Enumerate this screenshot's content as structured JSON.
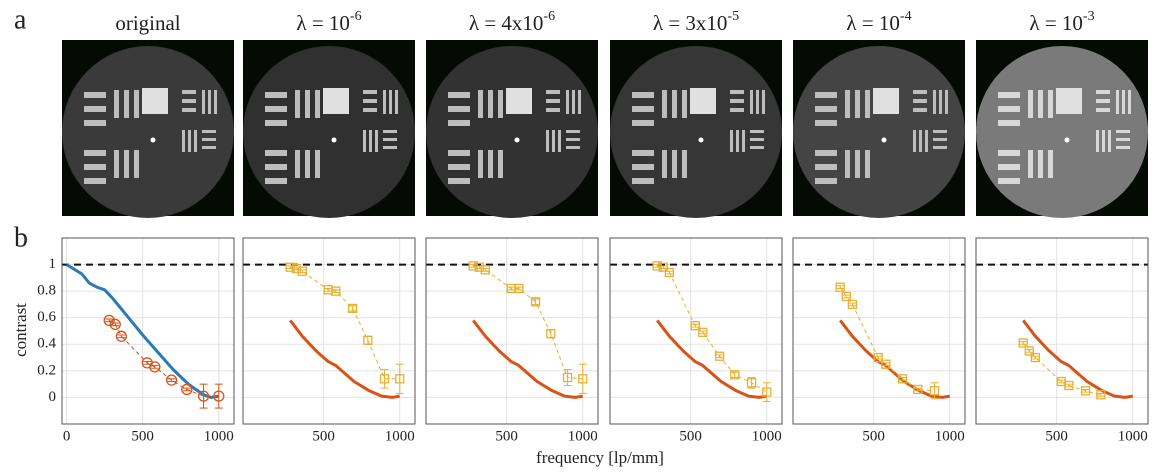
{
  "panel_labels": [
    "a",
    "b"
  ],
  "xlabel": "frequency [lp/mm]",
  "ylabel": "contrast",
  "images": [
    {
      "title": "original"
    },
    {
      "title": "λ = 10",
      "title_superscript": "-6"
    },
    {
      "title": "λ = 4x10",
      "title_superscript": "-6"
    },
    {
      "title": "λ = 3x10",
      "title_superscript": "-5"
    },
    {
      "title": "λ = 10",
      "title_superscript": "-4"
    },
    {
      "title": "λ = 10",
      "title_superscript": "-3"
    }
  ],
  "chart_data": [
    {
      "type": "line",
      "xlim": [
        -30,
        1100
      ],
      "ylim": [
        -0.2,
        1.2
      ],
      "xticks": [
        0,
        500,
        1000
      ],
      "yticks": [
        0,
        0.2,
        0.4,
        0.6,
        0.8,
        1
      ],
      "yticklabels": true,
      "grid": true,
      "hline": 1,
      "series": [
        {
          "style": "line",
          "color": "#2a7ab8",
          "x": [
            0,
            100,
            150,
            200,
            250,
            300,
            400,
            500,
            600,
            700,
            800,
            900,
            950,
            1000
          ],
          "values": [
            1,
            0.93,
            0.86,
            0.83,
            0.81,
            0.75,
            0.61,
            0.47,
            0.34,
            0.21,
            0.1,
            0.02,
            0,
            0.01
          ]
        },
        {
          "style": "markers",
          "marker": "circle",
          "color": "#d95319",
          "x": [
            280,
            320,
            360,
            530,
            580,
            690,
            790,
            900,
            1000
          ],
          "values": [
            0.58,
            0.55,
            0.46,
            0.26,
            0.23,
            0.13,
            0.06,
            0.01,
            0.01
          ],
          "errors": [
            0.01,
            0.01,
            0.01,
            0.01,
            0.01,
            0.01,
            0.01,
            0.09,
            0.09
          ]
        }
      ]
    },
    {
      "type": "line",
      "xlim": [
        -30,
        1100
      ],
      "ylim": [
        -0.2,
        1.2
      ],
      "xticks": [
        500,
        1000
      ],
      "yticks": [
        0,
        0.2,
        0.4,
        0.6,
        0.8,
        1
      ],
      "yticklabels": false,
      "grid": true,
      "hline": 1,
      "series": [
        {
          "style": "line",
          "color": "#d95319",
          "x": [
            280,
            320,
            360,
            450,
            530,
            580,
            620,
            700,
            800,
            880,
            950,
            1000
          ],
          "values": [
            0.58,
            0.52,
            0.46,
            0.35,
            0.27,
            0.24,
            0.2,
            0.12,
            0.05,
            0.01,
            0,
            0.01
          ]
        },
        {
          "style": "markers",
          "marker": "square",
          "color": "#e8b030",
          "x": [
            280,
            320,
            360,
            530,
            580,
            690,
            790,
            900,
            1000
          ],
          "values": [
            0.98,
            0.97,
            0.95,
            0.81,
            0.8,
            0.67,
            0.43,
            0.14,
            0.14
          ],
          "errors": [
            0.01,
            0.01,
            0.01,
            0.01,
            0.01,
            0.02,
            0.03,
            0.07,
            0.11
          ]
        }
      ]
    },
    {
      "type": "line",
      "xlim": [
        -30,
        1100
      ],
      "ylim": [
        -0.2,
        1.2
      ],
      "xticks": [
        500,
        1000
      ],
      "yticks": [
        0,
        0.2,
        0.4,
        0.6,
        0.8,
        1
      ],
      "yticklabels": false,
      "grid": true,
      "hline": 1,
      "series": [
        {
          "style": "line",
          "color": "#d95319",
          "x": [
            280,
            320,
            360,
            450,
            530,
            580,
            620,
            700,
            800,
            880,
            950,
            1000
          ],
          "values": [
            0.58,
            0.52,
            0.46,
            0.35,
            0.27,
            0.24,
            0.2,
            0.12,
            0.05,
            0.01,
            0,
            0.01
          ]
        },
        {
          "style": "markers",
          "marker": "square",
          "color": "#e8b030",
          "x": [
            280,
            320,
            360,
            530,
            580,
            690,
            790,
            900,
            1000
          ],
          "values": [
            0.99,
            0.98,
            0.96,
            0.82,
            0.82,
            0.72,
            0.48,
            0.15,
            0.14
          ],
          "errors": [
            0.01,
            0.01,
            0.01,
            0.01,
            0.01,
            0.02,
            0.03,
            0.06,
            0.11
          ]
        }
      ]
    },
    {
      "type": "line",
      "xlim": [
        -30,
        1100
      ],
      "ylim": [
        -0.2,
        1.2
      ],
      "xticks": [
        500,
        1000
      ],
      "yticks": [
        0,
        0.2,
        0.4,
        0.6,
        0.8,
        1
      ],
      "yticklabels": false,
      "grid": true,
      "hline": 1,
      "series": [
        {
          "style": "line",
          "color": "#d95319",
          "x": [
            280,
            320,
            360,
            450,
            530,
            580,
            620,
            700,
            800,
            880,
            950,
            1000
          ],
          "values": [
            0.58,
            0.52,
            0.46,
            0.35,
            0.27,
            0.24,
            0.2,
            0.12,
            0.05,
            0.01,
            0,
            0.01
          ]
        },
        {
          "style": "markers",
          "marker": "square",
          "color": "#e8b030",
          "x": [
            280,
            320,
            360,
            530,
            580,
            690,
            790,
            900,
            1000
          ],
          "values": [
            0.99,
            0.98,
            0.94,
            0.54,
            0.49,
            0.31,
            0.17,
            0.11,
            0.04
          ],
          "errors": [
            0.01,
            0.01,
            0.01,
            0.01,
            0.01,
            0.01,
            0.02,
            0.04,
            0.07
          ]
        }
      ]
    },
    {
      "type": "line",
      "xlim": [
        -30,
        1100
      ],
      "ylim": [
        -0.2,
        1.2
      ],
      "xticks": [
        500,
        1000
      ],
      "yticks": [
        0,
        0.2,
        0.4,
        0.6,
        0.8,
        1
      ],
      "yticklabels": false,
      "grid": true,
      "hline": 1,
      "series": [
        {
          "style": "line",
          "color": "#d95319",
          "x": [
            280,
            320,
            360,
            450,
            530,
            580,
            620,
            700,
            800,
            880,
            950,
            1000
          ],
          "values": [
            0.58,
            0.52,
            0.46,
            0.35,
            0.27,
            0.24,
            0.2,
            0.12,
            0.05,
            0.01,
            0,
            0.01
          ]
        },
        {
          "style": "markers",
          "marker": "square",
          "color": "#e8b030",
          "x": [
            280,
            320,
            360,
            530,
            580,
            690,
            790,
            900
          ],
          "values": [
            0.83,
            0.76,
            0.7,
            0.3,
            0.25,
            0.14,
            0.06,
            0.05
          ],
          "errors": [
            0.01,
            0.01,
            0.01,
            0.01,
            0.01,
            0.01,
            0.01,
            0.06
          ]
        }
      ]
    },
    {
      "type": "line",
      "xlim": [
        -30,
        1100
      ],
      "ylim": [
        -0.2,
        1.2
      ],
      "xticks": [
        500,
        1000
      ],
      "yticks": [
        0,
        0.2,
        0.4,
        0.6,
        0.8,
        1
      ],
      "yticklabels": false,
      "grid": true,
      "hline": 1,
      "series": [
        {
          "style": "line",
          "color": "#d95319",
          "x": [
            280,
            320,
            360,
            450,
            530,
            580,
            620,
            700,
            800,
            880,
            950,
            1000
          ],
          "values": [
            0.58,
            0.52,
            0.46,
            0.35,
            0.27,
            0.24,
            0.2,
            0.12,
            0.05,
            0.01,
            0,
            0.01
          ]
        },
        {
          "style": "markers",
          "marker": "square",
          "color": "#e8b030",
          "x": [
            280,
            320,
            360,
            530,
            580,
            690,
            790
          ],
          "values": [
            0.41,
            0.35,
            0.3,
            0.12,
            0.09,
            0.05,
            0.02
          ],
          "errors": [
            0.01,
            0.01,
            0.01,
            0.01,
            0.01,
            0.01,
            0.01
          ]
        }
      ]
    }
  ]
}
